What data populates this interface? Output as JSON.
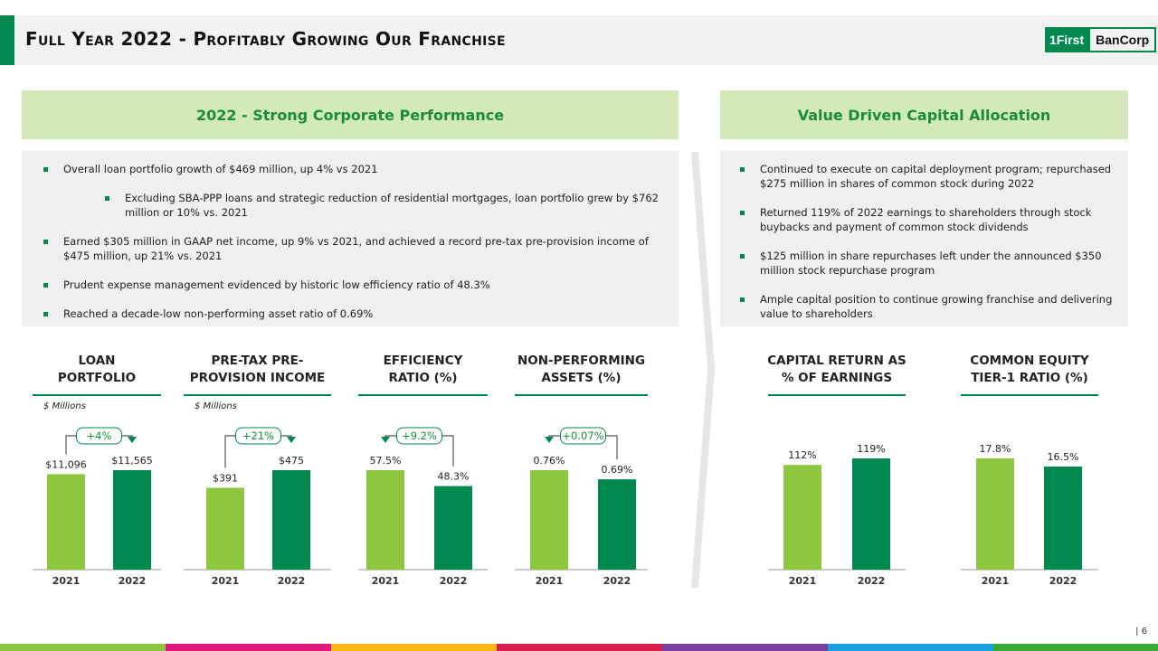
{
  "header": {
    "title": "Full Year 2022 - Profitably Growing Our Franchise",
    "logo_left": "1First",
    "logo_right": "BanCorp"
  },
  "left_panel": {
    "heading": "2022 - Strong Corporate Performance",
    "bullets": [
      {
        "text": "Overall loan portfolio growth of $469 million, up 4% vs 2021",
        "sub_bullets": [
          "Excluding SBA-PPP loans and strategic reduction of residential mortgages, loan portfolio grew by $762 million or 10% vs. 2021"
        ]
      },
      {
        "text": "Earned $305 million in GAAP net income, up 9% vs 2021, and achieved a record pre-tax pre-provision income of $475 million, up 21% vs. 2021"
      },
      {
        "text": "Prudent expense management evidenced by historic low efficiency ratio of 48.3%"
      },
      {
        "text": "Reached a decade-low non-performing asset ratio of 0.69%"
      }
    ]
  },
  "right_panel": {
    "heading": "Value Driven Capital Allocation",
    "bullets": [
      {
        "text": "Continued to execute on capital deployment program; repurchased $275 million in shares of common stock during 2022"
      },
      {
        "text": "Returned 119% of 2022 earnings to shareholders through stock buybacks and payment of common stock dividends"
      },
      {
        "text": "$125 million in share repurchases left under the announced $350 million stock repurchase program"
      },
      {
        "text": "Ample capital position to continue growing franchise and delivering value to shareholders"
      }
    ]
  },
  "chart_data": [
    {
      "type": "bar",
      "title": "LOAN PORTFOLIO",
      "subtitle": "$ Millions",
      "annotation": "+4%",
      "categories": [
        "2021",
        "2022"
      ],
      "values": [
        11096,
        11565
      ],
      "value_labels": [
        "$11,096",
        "$11,565"
      ],
      "colors": [
        "#8dc63f",
        "#00894f"
      ]
    },
    {
      "type": "bar",
      "title": "PRE-TAX PRE-PROVISION INCOME",
      "subtitle": "$ Millions",
      "annotation": "+21%",
      "categories": [
        "2021",
        "2022"
      ],
      "values": [
        391,
        475
      ],
      "value_labels": [
        "$391",
        "$475"
      ],
      "colors": [
        "#8dc63f",
        "#00894f"
      ]
    },
    {
      "type": "bar",
      "title": "EFFICIENCY RATIO (%)",
      "annotation": "+9.2%",
      "categories": [
        "2021",
        "2022"
      ],
      "values": [
        57.5,
        48.3
      ],
      "value_labels": [
        "57.5%",
        "48.3%"
      ],
      "colors": [
        "#8dc63f",
        "#00894f"
      ]
    },
    {
      "type": "bar",
      "title": "NON-PERFORMING ASSETS (%)",
      "annotation": "+0.07%",
      "categories": [
        "2021",
        "2022"
      ],
      "values": [
        0.76,
        0.69
      ],
      "value_labels": [
        "0.76%",
        "0.69%"
      ],
      "colors": [
        "#8dc63f",
        "#00894f"
      ]
    },
    {
      "type": "bar",
      "title": "CAPITAL RETURN AS % OF EARNINGS",
      "categories": [
        "2021",
        "2022"
      ],
      "values": [
        112,
        119
      ],
      "value_labels": [
        "112%",
        "119%"
      ],
      "colors": [
        "#8dc63f",
        "#00894f"
      ]
    },
    {
      "type": "bar",
      "title": "COMMON EQUITY TIER-1 RATIO (%)",
      "categories": [
        "2021",
        "2022"
      ],
      "values": [
        17.8,
        16.5
      ],
      "value_labels": [
        "17.8%",
        "16.5%"
      ],
      "colors": [
        "#8dc63f",
        "#00894f"
      ]
    }
  ],
  "page_number": "| 6"
}
